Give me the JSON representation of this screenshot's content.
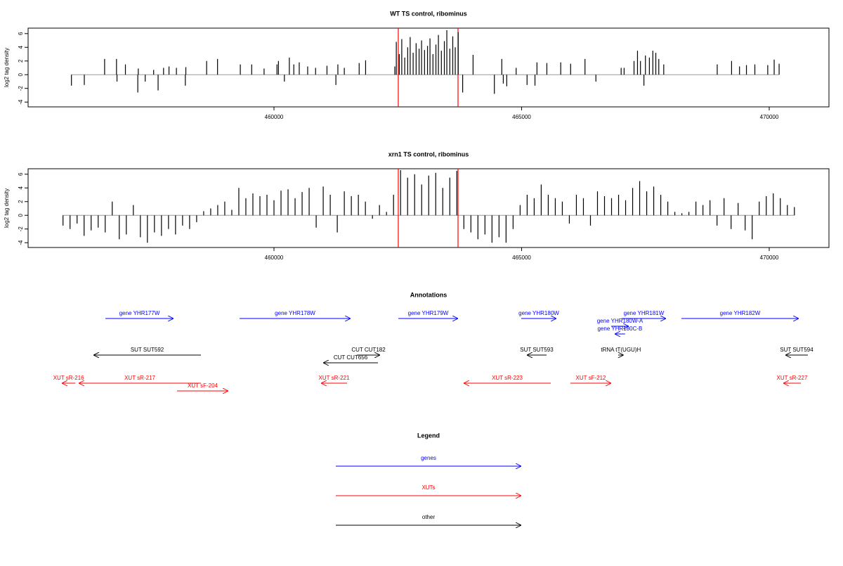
{
  "chart_data": [
    {
      "type": "track",
      "title": "WT TS control, ribominus",
      "ylabel": "log2 tag density",
      "color": "#000000",
      "xlim": [
        455035,
        471206
      ],
      "ylim": [
        -4.7,
        6.8
      ],
      "xticks": [
        460000,
        465000,
        470000
      ],
      "yticks": [
        -4,
        -2,
        0,
        2,
        4,
        6
      ],
      "highlights": [
        462510,
        463716
      ],
      "highlight_color": "#ff0000",
      "x": [
        455910,
        456170,
        456580,
        456820,
        456830,
        457000,
        457250,
        457260,
        457400,
        457570,
        457660,
        457770,
        457880,
        458030,
        458210,
        458220,
        458640,
        458860,
        459320,
        459550,
        459800,
        460060,
        460090,
        460210,
        460310,
        460400,
        460510,
        460680,
        460840,
        461070,
        461250,
        461290,
        461420,
        461720,
        461850,
        462440,
        462470,
        462530,
        462580,
        462640,
        462700,
        462750,
        462810,
        462870,
        462930,
        462980,
        463040,
        463100,
        463150,
        463210,
        463270,
        463320,
        463380,
        463440,
        463490,
        463550,
        463610,
        463660,
        463720,
        463810,
        464020,
        464450,
        464600,
        464630,
        464700,
        464890,
        465110,
        465270,
        465310,
        465510,
        465790,
        465990,
        466280,
        466500,
        467010,
        467070,
        467270,
        467340,
        467400,
        467470,
        467500,
        467580,
        467650,
        467710,
        467770,
        467870,
        468950,
        469240,
        469400,
        469540,
        469710,
        469970,
        470100,
        470200
      ],
      "values": [
        -1.6,
        -1.5,
        2.3,
        2.3,
        -1.0,
        1.5,
        -2.6,
        0.9,
        -1.0,
        0.7,
        -2.3,
        1.0,
        1.2,
        1.0,
        -1.6,
        1.1,
        2.0,
        2.3,
        1.5,
        1.5,
        0.9,
        1.5,
        2.0,
        -1.0,
        2.5,
        1.5,
        1.8,
        1.2,
        1.0,
        1.3,
        -1.5,
        1.5,
        1.0,
        1.7,
        2.1,
        1.2,
        4.8,
        3.0,
        5.2,
        2.5,
        4.0,
        5.5,
        3.2,
        4.6,
        3.8,
        5.0,
        3.6,
        4.2,
        5.3,
        3.0,
        4.4,
        5.8,
        3.5,
        4.9,
        6.5,
        3.8,
        5.6,
        4.0,
        6.2,
        -2.6,
        2.9,
        -2.8,
        2.3,
        -1.3,
        -1.7,
        1.0,
        -1.5,
        -1.6,
        1.8,
        1.7,
        1.8,
        1.6,
        2.3,
        -1.0,
        1.0,
        1.0,
        2.0,
        3.5,
        2.0,
        -1.6,
        2.8,
        2.5,
        3.5,
        3.2,
        2.3,
        1.5,
        1.5,
        2.0,
        1.2,
        1.4,
        1.5,
        1.4,
        2.2,
        1.6
      ]
    },
    {
      "type": "track",
      "title": "xrn1 TS control, ribominus",
      "ylabel": "log2 tag density",
      "color": "#000000",
      "xlim": [
        455035,
        471206
      ],
      "ylim": [
        -4.7,
        6.8
      ],
      "xticks": [
        460000,
        465000,
        470000
      ],
      "yticks": [
        -4,
        -2,
        0,
        2,
        4,
        6
      ],
      "highlights": [
        462510,
        463716
      ],
      "highlight_color": "#ff0000",
      "x": [
        455740,
        455882,
        456024,
        456166,
        456308,
        456450,
        456592,
        456734,
        456876,
        457018,
        457160,
        457302,
        457444,
        457586,
        457728,
        457870,
        458012,
        458154,
        458296,
        458438,
        458580,
        458722,
        458864,
        459006,
        459148,
        459290,
        459432,
        459574,
        459716,
        459858,
        460000,
        460142,
        460284,
        460426,
        460568,
        460710,
        460852,
        460994,
        461136,
        461278,
        461420,
        461562,
        461704,
        461846,
        461988,
        462130,
        462272,
        462414,
        462556,
        462698,
        462840,
        462982,
        463124,
        463266,
        463408,
        463550,
        463692,
        463834,
        463976,
        464118,
        464260,
        464402,
        464544,
        464686,
        464828,
        464970,
        465112,
        465254,
        465396,
        465538,
        465680,
        465822,
        465964,
        466106,
        466248,
        466390,
        466532,
        466674,
        466816,
        466958,
        467100,
        467242,
        467384,
        467526,
        467668,
        467810,
        467952,
        468094,
        468236,
        468378,
        468520,
        468662,
        468804,
        468946,
        469088,
        469230,
        469372,
        469514,
        469656,
        469798,
        469940,
        470082,
        470224,
        470366,
        470508
      ],
      "values": [
        -1.5,
        -2.0,
        -1.2,
        -3.0,
        -2.2,
        -1.8,
        -2.5,
        2.0,
        -3.5,
        -2.8,
        1.5,
        -3.2,
        -4.0,
        -2.5,
        -3.0,
        -2.0,
        -2.8,
        -1.5,
        -2.0,
        -1.0,
        0.6,
        1.0,
        1.5,
        2.0,
        0.8,
        4.0,
        2.5,
        3.2,
        2.8,
        3.0,
        2.2,
        3.6,
        3.8,
        2.5,
        3.4,
        4.0,
        -1.8,
        4.2,
        3.0,
        -2.5,
        3.5,
        2.8,
        3.0,
        2.0,
        -0.5,
        1.5,
        0.5,
        3.0,
        6.6,
        5.5,
        6.0,
        4.5,
        5.8,
        6.2,
        4.0,
        5.5,
        6.5,
        -2.0,
        -2.5,
        -3.5,
        -2.8,
        -4.0,
        -3.2,
        -4.0,
        -2.0,
        1.5,
        3.0,
        2.5,
        4.5,
        3.0,
        2.5,
        2.0,
        -1.2,
        3.0,
        2.5,
        -1.5,
        3.5,
        2.8,
        2.5,
        3.0,
        2.2,
        4.0,
        5.0,
        3.5,
        4.2,
        3.0,
        2.0,
        0.5,
        0.3,
        0.5,
        2.0,
        1.5,
        2.2,
        -1.5,
        2.5,
        -2.0,
        1.8,
        -2.2,
        -3.5,
        2.0,
        2.8,
        3.2,
        2.5,
        1.5,
        1.2
      ]
    }
  ],
  "annotations": {
    "title": "Annotations",
    "features": [
      {
        "label": "gene YHR177W",
        "kind": 0,
        "start": 456596,
        "end": 457972,
        "strand": "+"
      },
      {
        "label": "gene YHR178W",
        "kind": 0,
        "start": 459305,
        "end": 461546,
        "strand": "+"
      },
      {
        "label": "gene YHR179W",
        "kind": 0,
        "start": 462511,
        "end": 463716,
        "strand": "+"
      },
      {
        "label": "gene YHR180W",
        "kind": 0,
        "start": 464993,
        "end": 465702,
        "strand": "+"
      },
      {
        "label": "gene YHR181W",
        "kind": 0,
        "start": 467021,
        "end": 467915,
        "strand": "+"
      },
      {
        "label": "gene YHR180W-A",
        "kind": 0,
        "start": 466809,
        "end": 467163,
        "strand": "+"
      },
      {
        "label": "gene YHR180C-B",
        "kind": 0,
        "start": 466880,
        "end": 467090,
        "strand": "-"
      },
      {
        "label": "tRNA tT(UGU)H",
        "kind": 2,
        "start": 466950,
        "end": 467060,
        "strand": "+"
      },
      {
        "label": "gene YHR182W",
        "kind": 0,
        "start": 468227,
        "end": 470596,
        "strand": "+"
      },
      {
        "label": "SUT SUT592",
        "kind": 2,
        "start": 456355,
        "end": 458525,
        "strand": "-"
      },
      {
        "label": "CUT CUT182",
        "kind": 2,
        "start": 461674,
        "end": 462142,
        "strand": "+"
      },
      {
        "label": "CUT CUT656",
        "kind": 2,
        "start": 460993,
        "end": 462099,
        "strand": "-"
      },
      {
        "label": "SUT SUT593",
        "kind": 2,
        "start": 465106,
        "end": 465504,
        "strand": "-"
      },
      {
        "label": "SUT SUT594",
        "kind": 2,
        "start": 470326,
        "end": 470780,
        "strand": "-"
      },
      {
        "label": "XUT sR-216",
        "kind": 1,
        "start": 455716,
        "end": 455990,
        "strand": "-"
      },
      {
        "label": "XUT sR-217",
        "kind": 1,
        "start": 456057,
        "end": 458525,
        "strand": "-"
      },
      {
        "label": "XUT sF-204",
        "kind": 1,
        "start": 458043,
        "end": 459078,
        "strand": "+"
      },
      {
        "label": "XUT sR-221",
        "kind": 1,
        "start": 460950,
        "end": 461475,
        "strand": "-"
      },
      {
        "label": "XUT sR-223",
        "kind": 1,
        "start": 463830,
        "end": 465589,
        "strand": "-"
      },
      {
        "label": "XUT sF-212",
        "kind": 1,
        "start": 465986,
        "end": 466809,
        "strand": "+"
      },
      {
        "label": "XUT sR-227",
        "kind": 1,
        "start": 470284,
        "end": 470638,
        "strand": "-"
      }
    ]
  },
  "legend": {
    "title": "Legend",
    "items": [
      {
        "name": "genes",
        "color": "#0000ff"
      },
      {
        "name": "XUTs",
        "color": "#ff0000"
      },
      {
        "name": "other",
        "color": "#000000"
      }
    ]
  }
}
